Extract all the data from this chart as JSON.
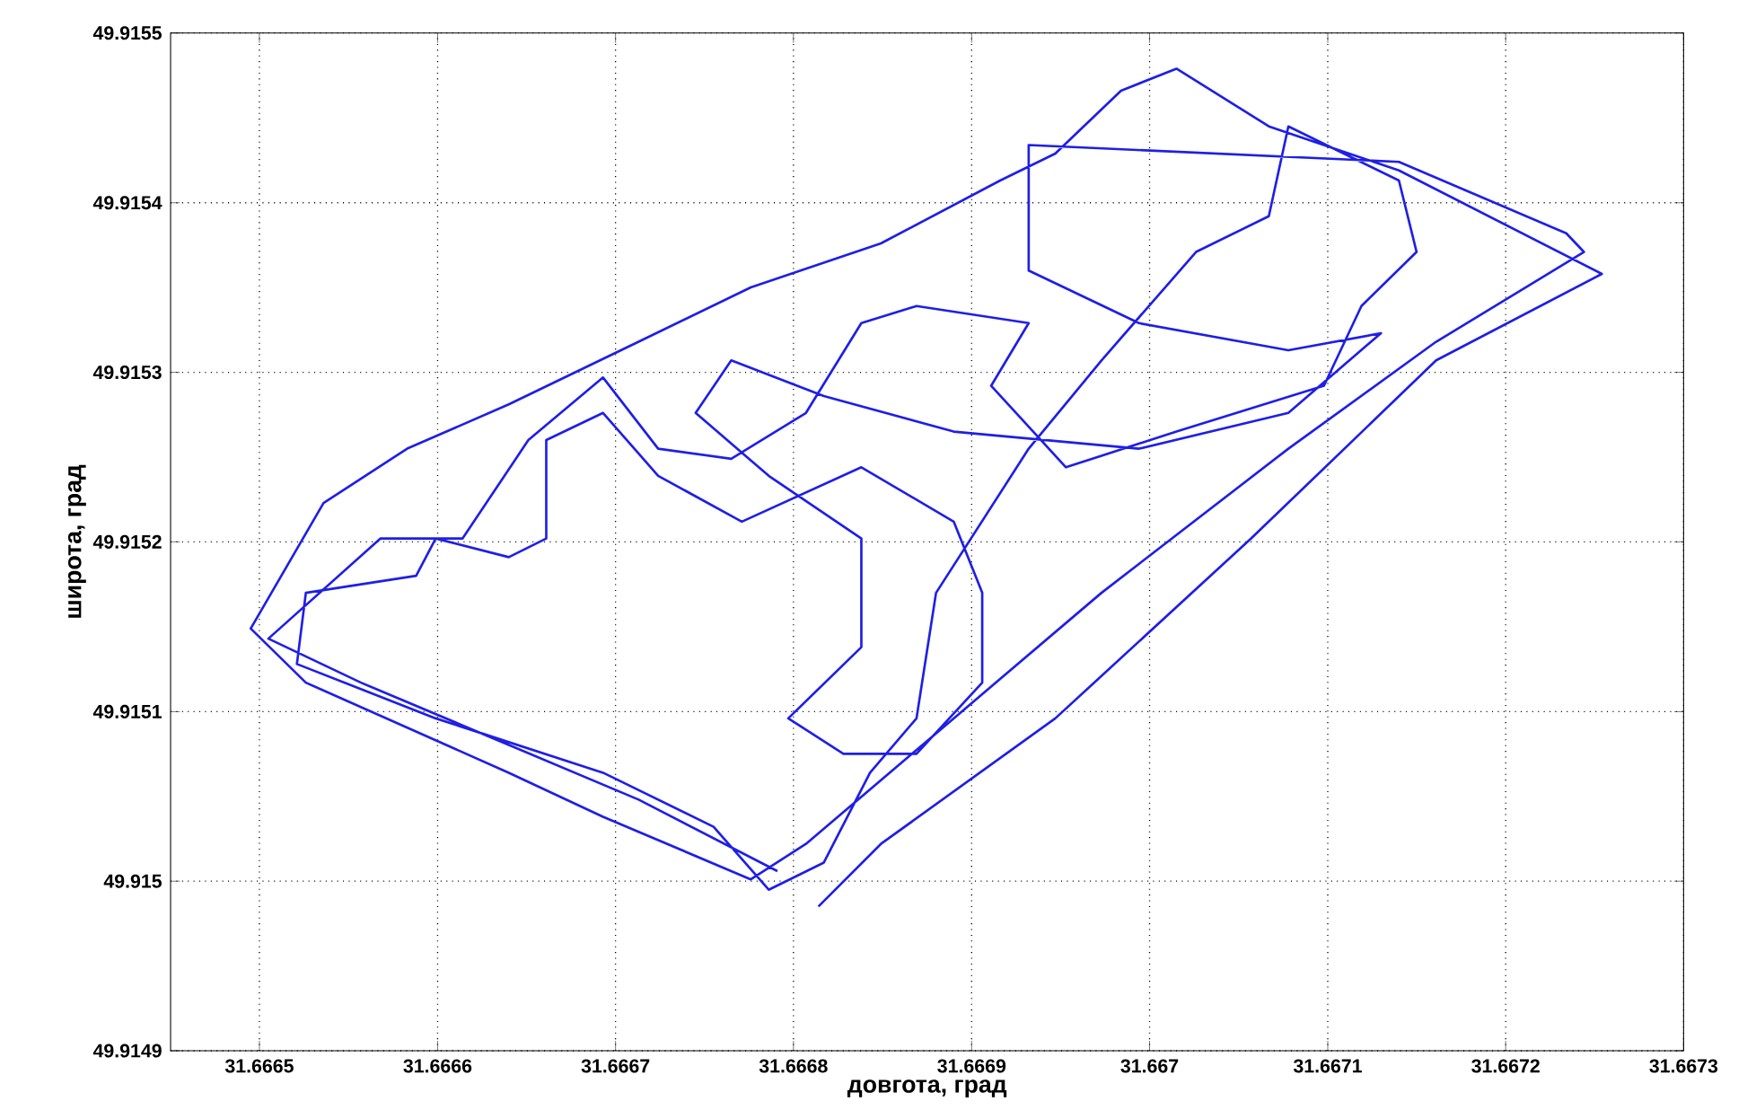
{
  "chart_data": {
    "type": "line",
    "xlabel": "довгота, град",
    "ylabel": "широта, град",
    "xlim": [
      31.66645,
      31.6673
    ],
    "ylim": [
      49.9149,
      49.9155
    ],
    "xticks": [
      31.6665,
      31.6666,
      31.6667,
      31.6668,
      31.6669,
      31.667,
      31.6671,
      31.6672,
      31.6673
    ],
    "yticks": [
      49.9149,
      49.915,
      49.9151,
      49.9152,
      49.9153,
      49.9154,
      49.9155
    ],
    "grid": true,
    "series": [
      {
        "color": "#1f1fe6",
        "x": [
          31.666814,
          31.666849,
          31.666947,
          31.667057,
          31.667161,
          31.667254,
          31.66714,
          31.667067,
          31.667015,
          31.666984,
          31.666947,
          31.666916,
          31.666849,
          31.666776,
          31.666713,
          31.66664,
          31.666583,
          31.666536,
          31.666495,
          31.666526,
          31.66664,
          31.666693,
          31.666776,
          31.666807,
          31.66689,
          31.666973,
          31.667078,
          31.667161,
          31.667244,
          31.667234,
          31.66714,
          31.666932,
          31.666932,
          31.666994,
          31.667078,
          31.66713,
          31.667078,
          31.666994,
          31.66689,
          31.666817,
          31.666765,
          31.666745,
          31.666786,
          31.666838,
          31.666838,
          31.666797,
          31.666828,
          31.666869,
          31.666906,
          31.666906,
          31.66689,
          31.666838,
          31.666771,
          31.666724,
          31.666693,
          31.666661,
          31.666661,
          31.66664,
          31.666599,
          31.666588,
          31.666526,
          31.666521,
          31.666599,
          31.666693,
          31.666755,
          31.666786,
          31.666817,
          31.666843,
          31.666869,
          31.66688,
          31.666932,
          31.666973,
          31.667026,
          31.667067,
          31.667078,
          31.66714,
          31.66715,
          31.667119,
          31.667098,
          31.667015,
          31.666953,
          31.666911,
          31.666932,
          31.666869,
          31.666838,
          31.666807,
          31.666765,
          31.666724,
          31.666693,
          31.666651,
          31.666614,
          31.666568,
          31.666505,
          31.666557,
          31.666713,
          31.666791
        ],
        "values": [
          49.914985,
          49.915022,
          49.915096,
          49.915202,
          49.915307,
          49.915358,
          49.915419,
          49.915445,
          49.915479,
          49.915466,
          49.915429,
          49.915413,
          49.915376,
          49.91535,
          49.915318,
          49.915281,
          49.915255,
          49.915223,
          49.915149,
          49.915117,
          49.915064,
          49.915038,
          49.915001,
          49.915022,
          49.915096,
          49.91517,
          49.915255,
          49.915318,
          49.915371,
          49.915382,
          49.915424,
          49.915434,
          49.91536,
          49.915329,
          49.915313,
          49.915323,
          49.915276,
          49.915255,
          49.915265,
          49.915286,
          49.915307,
          49.915276,
          49.915239,
          49.915202,
          49.915138,
          49.915096,
          49.915075,
          49.915075,
          49.915117,
          49.91517,
          49.915212,
          49.915244,
          49.915212,
          49.915239,
          49.915276,
          49.91526,
          49.915202,
          49.915191,
          49.915202,
          49.91518,
          49.91517,
          49.915128,
          49.915096,
          49.915064,
          49.915032,
          49.914995,
          49.915011,
          49.915064,
          49.915096,
          49.91517,
          49.915255,
          49.915307,
          49.915371,
          49.915392,
          49.915445,
          49.915413,
          49.915371,
          49.915339,
          49.915292,
          49.915265,
          49.915244,
          49.915292,
          49.915329,
          49.915339,
          49.915329,
          49.915276,
          49.915249,
          49.915255,
          49.915297,
          49.91526,
          49.915202,
          49.915202,
          49.915143,
          49.915117,
          49.915048,
          49.915006
        ]
      }
    ]
  }
}
